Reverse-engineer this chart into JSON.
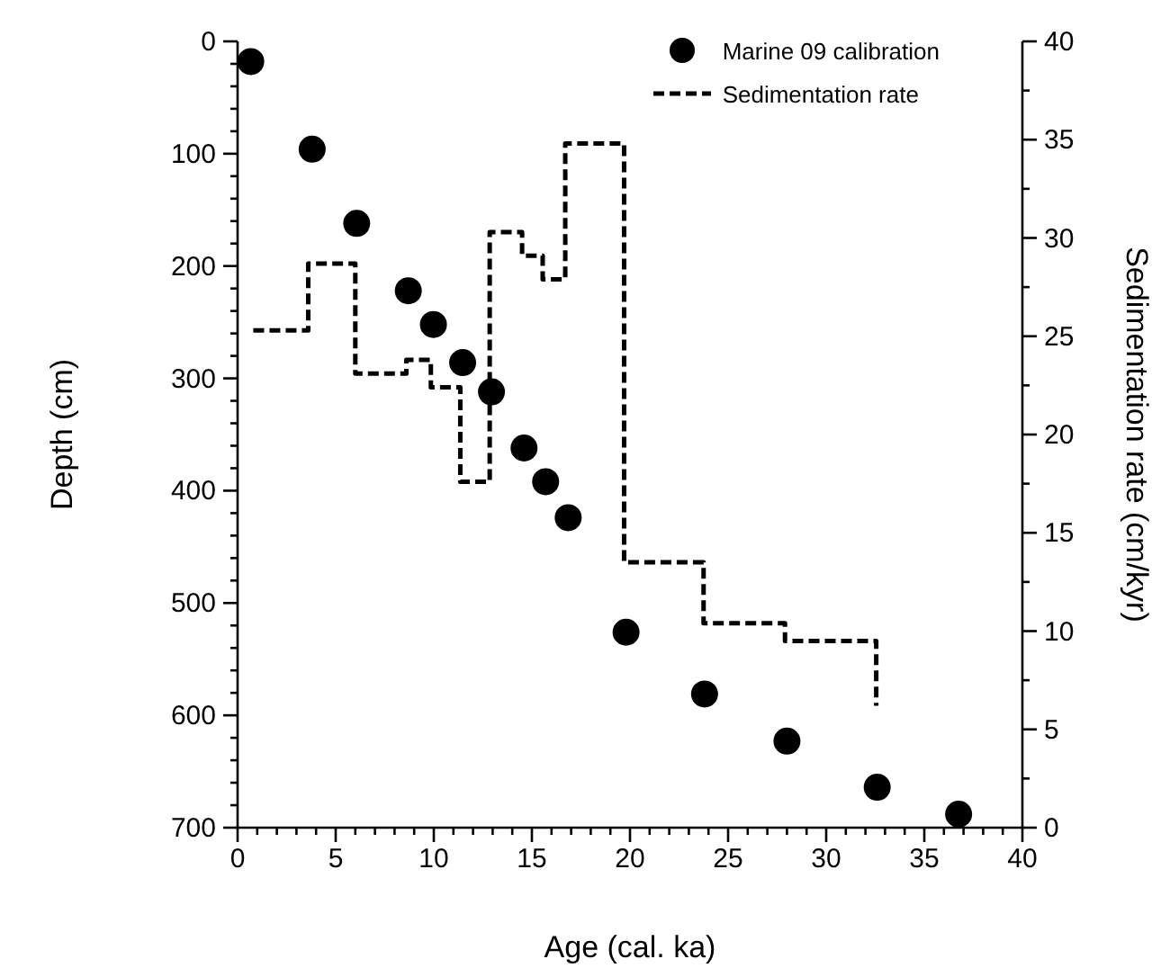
{
  "chart_data": {
    "type": "scatter",
    "xlabel": "Age (cal. ka)",
    "ylabel": "Depth (cm)",
    "y2label": "Sedimentation rate (cm/kyr)",
    "xlim": [
      0,
      40
    ],
    "ylim": [
      700,
      0
    ],
    "y2lim": [
      0,
      40
    ],
    "xticks": [
      0,
      {
        "value": 1,
        "label": null
      },
      {
        "value": 2,
        "label": null
      },
      {
        "value": 3,
        "label": null
      },
      {
        "value": 4,
        "label": null
      },
      5,
      {
        "value": 6,
        "label": null
      },
      {
        "value": 7,
        "label": null
      },
      {
        "value": 8,
        "label": null
      },
      {
        "value": 9,
        "label": null
      },
      10,
      {
        "value": 11,
        "label": null
      },
      {
        "value": 12,
        "label": null
      },
      {
        "value": 13,
        "label": null
      },
      {
        "value": 14,
        "label": null
      },
      15,
      {
        "value": 16,
        "label": null
      },
      {
        "value": 17,
        "label": null
      },
      {
        "value": 18,
        "label": null
      },
      {
        "value": 19,
        "label": null
      },
      20,
      {
        "value": 21,
        "label": null
      },
      {
        "value": 22,
        "label": null
      },
      {
        "value": 23,
        "label": null
      },
      {
        "value": 24,
        "label": null
      },
      25,
      {
        "value": 26,
        "label": null
      },
      {
        "value": 27,
        "label": null
      },
      {
        "value": 28,
        "label": null
      },
      {
        "value": 29,
        "label": null
      },
      30,
      {
        "value": 31,
        "label": null
      },
      {
        "value": 32,
        "label": null
      },
      {
        "value": 33,
        "label": null
      },
      {
        "value": 34,
        "label": null
      },
      35,
      {
        "value": 36,
        "label": null
      },
      {
        "value": 37,
        "label": null
      },
      {
        "value": 38,
        "label": null
      },
      {
        "value": 39,
        "label": null
      },
      40
    ],
    "yticks": [
      0,
      {
        "value": 20,
        "label": null
      },
      {
        "value": 40,
        "label": null
      },
      {
        "value": 60,
        "label": null
      },
      {
        "value": 80,
        "label": null
      },
      100,
      {
        "value": 120,
        "label": null
      },
      {
        "value": 140,
        "label": null
      },
      {
        "value": 160,
        "label": null
      },
      {
        "value": 180,
        "label": null
      },
      200,
      {
        "value": 220,
        "label": null
      },
      {
        "value": 240,
        "label": null
      },
      {
        "value": 260,
        "label": null
      },
      {
        "value": 280,
        "label": null
      },
      300,
      {
        "value": 320,
        "label": null
      },
      {
        "value": 340,
        "label": null
      },
      {
        "value": 360,
        "label": null
      },
      {
        "value": 380,
        "label": null
      },
      400,
      {
        "value": 420,
        "label": null
      },
      {
        "value": 440,
        "label": null
      },
      {
        "value": 460,
        "label": null
      },
      {
        "value": 480,
        "label": null
      },
      500,
      {
        "value": 520,
        "label": null
      },
      {
        "value": 540,
        "label": null
      },
      {
        "value": 560,
        "label": null
      },
      {
        "value": 580,
        "label": null
      },
      600,
      {
        "value": 620,
        "label": null
      },
      {
        "value": 640,
        "label": null
      },
      {
        "value": 660,
        "label": null
      },
      {
        "value": 680,
        "label": null
      },
      700
    ],
    "y2ticks": [
      0,
      {
        "value": 2.5,
        "label": null
      },
      5,
      {
        "value": 7.5,
        "label": null
      },
      10,
      {
        "value": 12.5,
        "label": null
      },
      15,
      {
        "value": 17.5,
        "label": null
      },
      20,
      {
        "value": 22.5,
        "label": null
      },
      25,
      {
        "value": 27.5,
        "label": null
      },
      30,
      {
        "value": 32.5,
        "label": null
      },
      35,
      {
        "value": 37.5,
        "label": null
      },
      40
    ],
    "grid": false,
    "legend": "top right",
    "series": [
      {
        "name": "Marine 09 calibration",
        "marker": "circle",
        "color": "#000000",
        "x": [
          0.67,
          3.8,
          6.07,
          8.7,
          9.98,
          11.47,
          12.94,
          14.6,
          15.7,
          16.85,
          19.8,
          23.8,
          28.0,
          32.6,
          36.75
        ],
        "values": [
          18,
          96,
          162,
          222,
          252,
          286,
          312,
          362,
          392,
          424,
          526,
          581,
          623,
          664,
          688
        ]
      },
      {
        "name": "Sedimentation rate",
        "type": "step",
        "axis": "y2",
        "line_style": "dashed",
        "color": "#000000",
        "x": [
          0.8,
          3.6,
          6.0,
          8.6,
          9.85,
          11.35,
          12.85,
          14.5,
          15.55,
          16.7,
          19.7,
          23.75,
          27.9,
          32.55
        ],
        "values": [
          25.3,
          28.7,
          23.1,
          23.8,
          22.4,
          17.6,
          30.3,
          29.1,
          27.9,
          34.8,
          13.5,
          10.4,
          9.5,
          6.2
        ]
      }
    ]
  }
}
